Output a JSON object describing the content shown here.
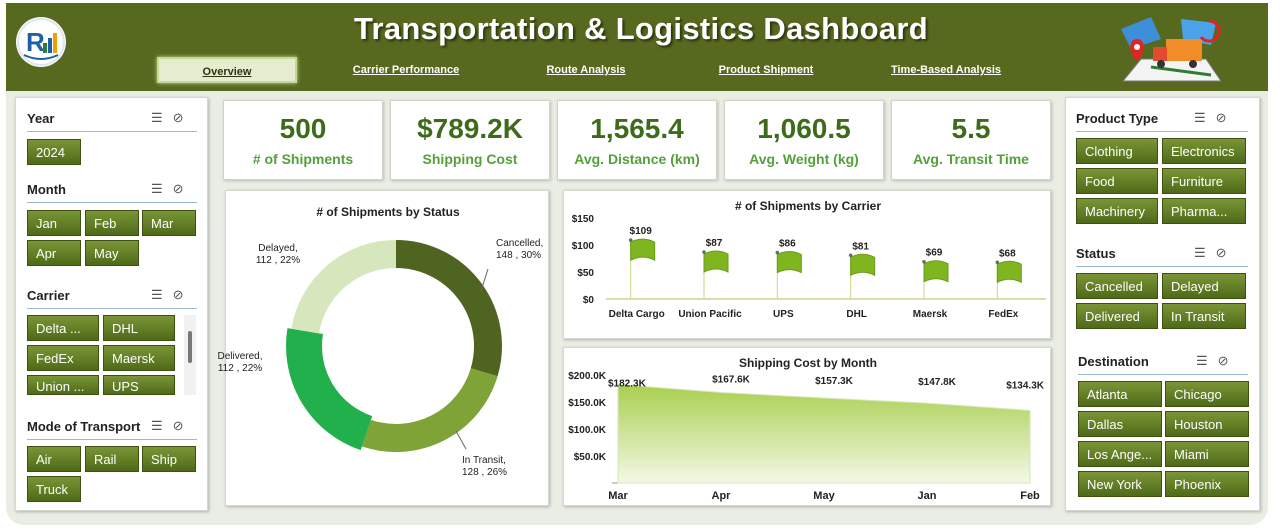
{
  "header": {
    "title": "Transportation & Logistics Dashboard"
  },
  "tabs": [
    {
      "label": "Overview"
    },
    {
      "label": "Carrier Performance"
    },
    {
      "label": "Route Analysis"
    },
    {
      "label": "Product Shipment"
    },
    {
      "label": "Time-Based Analysis"
    }
  ],
  "left_slicers": {
    "year": {
      "title": "Year",
      "items": [
        "2024"
      ]
    },
    "month": {
      "title": "Month",
      "items": [
        "Jan",
        "Feb",
        "Mar",
        "Apr",
        "May"
      ]
    },
    "carrier": {
      "title": "Carrier",
      "items": [
        "Delta ...",
        "DHL",
        "FedEx",
        "Maersk",
        "Union ...",
        "UPS"
      ]
    },
    "mode": {
      "title": "Mode of Transport",
      "items": [
        "Air",
        "Rail",
        "Ship",
        "Truck"
      ]
    }
  },
  "right_slicers": {
    "product_type": {
      "title": "Product Type",
      "items": [
        "Clothing",
        "Electronics",
        "Food",
        "Furniture",
        "Machinery",
        "Pharma..."
      ]
    },
    "status": {
      "title": "Status",
      "items": [
        "Cancelled",
        "Delayed",
        "Delivered",
        "In Transit"
      ]
    },
    "destination": {
      "title": "Destination",
      "items": [
        "Atlanta",
        "Chicago",
        "Dallas",
        "Houston",
        "Los Ange...",
        "Miami",
        "New York",
        "Phoenix"
      ]
    }
  },
  "kpis": [
    {
      "value": "500",
      "label": "# of Shipments"
    },
    {
      "value": "$789.2K",
      "label": "Shipping Cost"
    },
    {
      "value": "1,565.4",
      "label": "Avg. Distance (km)"
    },
    {
      "value": "1,060.5",
      "label": "Avg. Weight (kg)"
    },
    {
      "value": "5.5",
      "label": "Avg. Transit Time"
    }
  ],
  "colors": {
    "header": "#56691f",
    "accent": "#3d6b1a",
    "kpi_label": "#54a03a"
  },
  "chart_data": [
    {
      "type": "pie",
      "title": "# of Shipments by Status",
      "categories": [
        "Cancelled",
        "In Transit",
        "Delivered",
        "Delayed"
      ],
      "values": [
        148,
        128,
        112,
        112
      ],
      "labels": [
        "Cancelled,\n148 , 30%",
        "In Transit,\n128 , 26%",
        "Delivered,\n112 , 22%",
        "Delayed,\n112 , 22%"
      ],
      "colors": [
        "#4f6420",
        "#7fa336",
        "#22b04c",
        "#d6e7bd"
      ]
    },
    {
      "type": "bar",
      "title": "# of Shipments by Carrier",
      "categories": [
        "Delta Cargo",
        "Union Pacific",
        "UPS",
        "DHL",
        "Maersk",
        "FedEx"
      ],
      "values": [
        109,
        87,
        86,
        81,
        69,
        68
      ],
      "data_labels": [
        "$109",
        "$87",
        "$86",
        "$81",
        "$69",
        "$68"
      ],
      "y_ticks": [
        "$0",
        "$50",
        "$100",
        "$150"
      ],
      "ylim": [
        0,
        150
      ]
    },
    {
      "type": "area",
      "title": "Shipping Cost by Month",
      "categories": [
        "Mar",
        "Apr",
        "May",
        "Jan",
        "Feb"
      ],
      "values": [
        182.3,
        167.6,
        157.3,
        147.8,
        134.3
      ],
      "data_labels": [
        "$182.3K",
        "$167.6K",
        "$157.3K",
        "$147.8K",
        "$134.3K"
      ],
      "y_ticks": [
        "$50.0K",
        "$100.0K",
        "$150.0K",
        "$200.0K"
      ],
      "ylim": [
        0,
        200
      ]
    }
  ]
}
